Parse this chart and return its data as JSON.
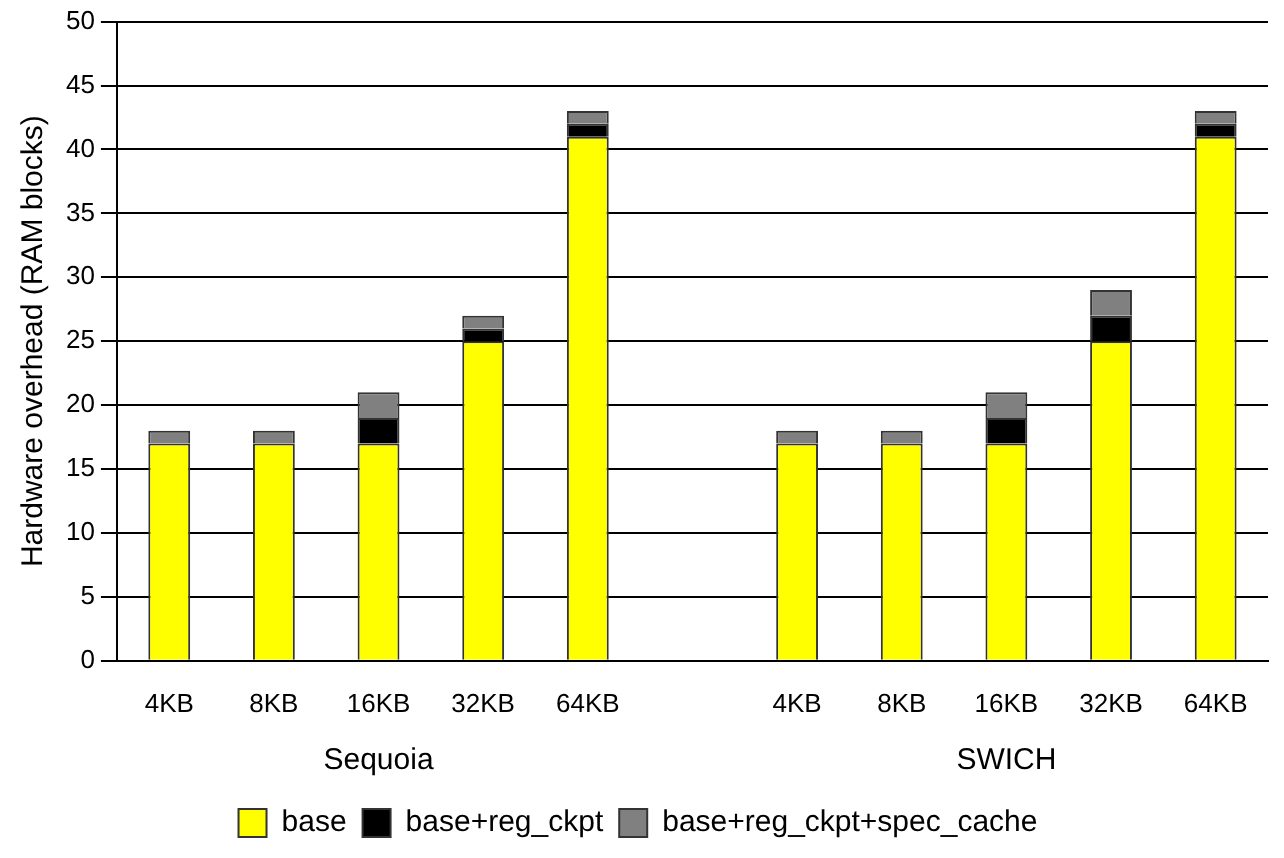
{
  "chart_data": {
    "type": "bar",
    "stacked": true,
    "ylabel": "Hardware overhead (RAM blocks)",
    "categories": [
      "4KB",
      "8KB",
      "16KB",
      "32KB",
      "64KB",
      null,
      "4KB",
      "8KB",
      "16KB",
      "32KB",
      "64KB"
    ],
    "series": [
      {
        "name": "base",
        "color": "#ffff00",
        "values": [
          17,
          17,
          17,
          25,
          41,
          null,
          17,
          17,
          17,
          25,
          41
        ]
      },
      {
        "name": "base+reg_ckpt",
        "color": "#000000",
        "values": [
          0,
          0,
          2,
          1,
          1,
          null,
          0,
          0,
          2,
          2,
          1
        ]
      },
      {
        "name": "base+reg_ckpt+spec_cache",
        "color": "#808080",
        "values": [
          1,
          1,
          2,
          1,
          1,
          null,
          1,
          1,
          2,
          2,
          1
        ]
      }
    ],
    "ylim": [
      0,
      50
    ],
    "yticks": [
      0,
      5,
      10,
      15,
      20,
      25,
      30,
      35,
      40,
      45,
      50
    ],
    "grid": "y",
    "legend": "bottom",
    "annotations": [
      "Sequoia",
      "SWICH"
    ]
  }
}
